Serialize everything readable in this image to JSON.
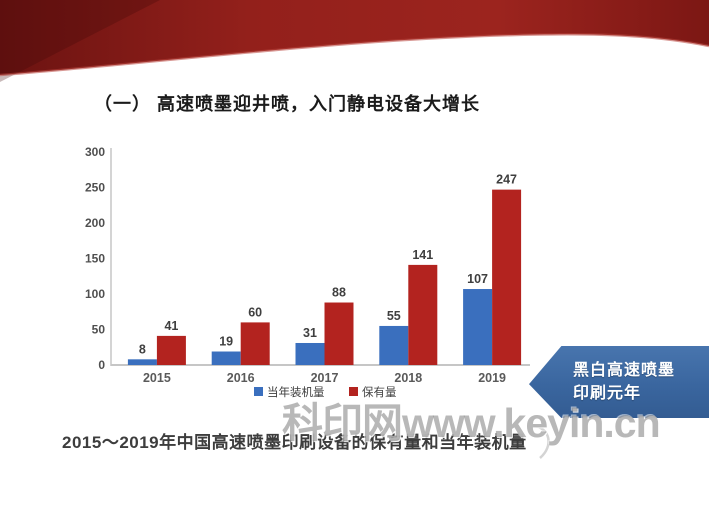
{
  "slide": {
    "title": "（一） 高速喷墨迎井喷，入门静电设备大增长",
    "caption": "2015～2019年中国高速喷墨印刷设备的保有量和当年装机量",
    "watermark": "科印网www.keyin.cn",
    "callout": {
      "line1": "黑白高速喷墨",
      "line2": "印刷元年"
    }
  },
  "colors": {
    "banner_red_dark": "#5f110f",
    "banner_red_mid": "#9c211c",
    "banner_red_right": "#7c1714",
    "bar_blue": "#3a6fbe",
    "bar_red": "#b3231f",
    "callout_blue": "#3a669f",
    "axis_gray": "#c6c6c6",
    "tick_text": "#4f4f4f",
    "value_text": "#3f3f3f",
    "legend_text": "#404040"
  },
  "chart_data": {
    "type": "bar",
    "title": "",
    "xlabel": "",
    "ylabel": "",
    "categories": [
      "2015",
      "2016",
      "2017",
      "2018",
      "2019"
    ],
    "series": [
      {
        "name": "当年装机量",
        "color": "#3a6fbe",
        "values": [
          8,
          19,
          31,
          55,
          107
        ]
      },
      {
        "name": "保有量",
        "color": "#b3231f",
        "values": [
          41,
          60,
          88,
          141,
          247
        ]
      }
    ],
    "ylim": [
      0,
      300
    ],
    "yticks": [
      0,
      50,
      100,
      150,
      200,
      250,
      300
    ],
    "grid": false,
    "legend_position": "bottom"
  }
}
